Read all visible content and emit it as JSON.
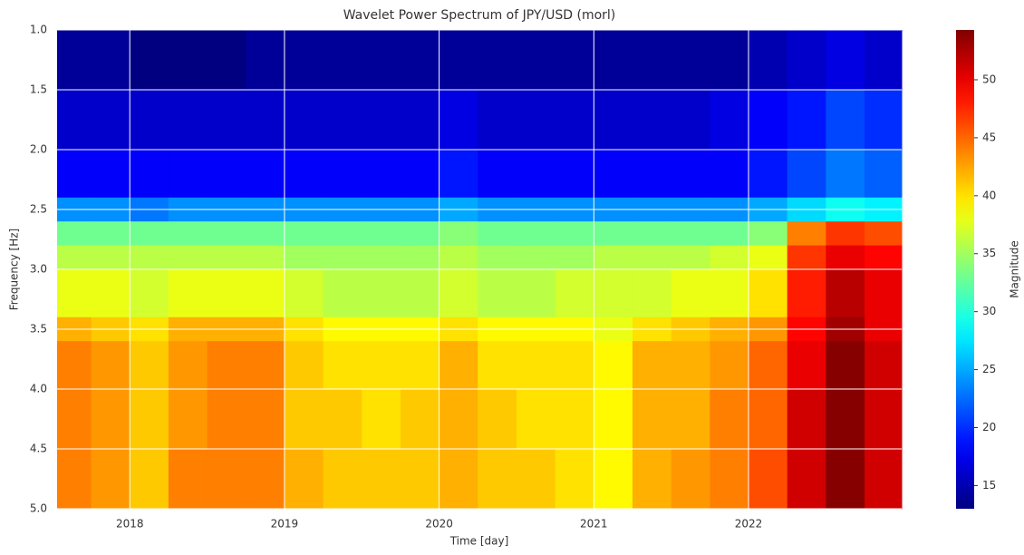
{
  "chart_data": {
    "type": "heatmap",
    "title": "Wavelet Power Spectrum of JPY/USD (morl)",
    "x_label": "Time [day]",
    "y_label": "Frequency [Hz]",
    "colorbar_label": "Magnitude",
    "colormap": "jet",
    "grid": true,
    "xlim": [
      2017.53,
      2022.99
    ],
    "xticks": [
      2018,
      2019,
      2020,
      2021,
      2022
    ],
    "ylim": [
      5.0,
      1.0
    ],
    "yticks": [
      {
        "value": 1.0,
        "label": "1.0"
      },
      {
        "value": 1.5,
        "label": "1.5"
      },
      {
        "value": 2.0,
        "label": "2.0"
      },
      {
        "value": 2.5,
        "label": "2.5"
      },
      {
        "value": 3.0,
        "label": "3.0"
      },
      {
        "value": 3.5,
        "label": "3.5"
      },
      {
        "value": 4.0,
        "label": "4.0"
      },
      {
        "value": 4.5,
        "label": "4.5"
      },
      {
        "value": 5.0,
        "label": "5.0"
      }
    ],
    "clim": [
      13,
      54.3
    ],
    "cticks": [
      15,
      20,
      25,
      30,
      35,
      40,
      45,
      50
    ],
    "xbins": [
      2017.53,
      2017.75,
      2018.0,
      2018.25,
      2018.5,
      2018.75,
      2019.0,
      2019.25,
      2019.5,
      2019.75,
      2020.0,
      2020.25,
      2020.5,
      2020.75,
      2021.0,
      2021.25,
      2021.5,
      2021.75,
      2022.0,
      2022.25,
      2022.5,
      2022.75,
      2022.99
    ],
    "ybins": [
      1.0,
      1.5,
      2.0,
      2.4,
      2.6,
      2.8,
      3.0,
      3.4,
      3.6,
      4.0,
      4.5,
      5.0
    ],
    "values": [
      [
        14,
        14,
        13,
        13,
        13,
        14,
        14,
        14,
        14,
        14,
        14,
        14,
        14,
        14,
        14,
        14,
        14,
        14,
        15,
        16,
        17,
        16
      ],
      [
        16,
        16,
        16,
        16,
        16,
        16,
        16,
        16,
        16,
        16,
        17,
        16,
        16,
        16,
        16,
        16,
        16,
        17,
        18,
        19,
        21,
        20
      ],
      [
        18,
        18,
        18,
        18,
        18,
        18,
        18,
        18,
        18,
        18,
        19,
        18,
        18,
        18,
        18,
        18,
        18,
        18,
        19,
        21,
        23,
        22
      ],
      [
        24,
        24,
        23,
        24,
        24,
        24,
        24,
        24,
        24,
        24,
        25,
        24,
        24,
        24,
        24,
        24,
        24,
        24,
        25,
        27,
        29,
        28
      ],
      [
        33,
        33,
        33,
        33,
        33,
        33,
        33,
        33,
        33,
        33,
        34,
        33,
        33,
        33,
        33,
        33,
        33,
        33,
        34,
        44,
        47,
        46
      ],
      [
        36,
        36,
        36,
        36,
        36,
        36,
        35,
        35,
        35,
        35,
        36,
        35,
        35,
        35,
        36,
        36,
        36,
        37,
        38,
        47,
        50,
        49
      ],
      [
        38,
        38,
        37,
        38,
        38,
        38,
        37,
        36,
        36,
        36,
        37,
        36,
        36,
        37,
        37,
        37,
        38,
        38,
        40,
        48,
        52,
        50
      ],
      [
        42,
        41,
        40,
        42,
        42,
        42,
        40,
        39,
        39,
        39,
        40,
        39,
        39,
        39,
        38,
        40,
        41,
        42,
        43,
        49,
        53,
        50
      ],
      [
        44,
        43,
        41,
        43,
        44,
        44,
        41,
        40,
        40,
        40,
        42,
        40,
        40,
        40,
        39,
        42,
        42,
        43,
        45,
        50,
        54,
        51
      ],
      [
        44,
        43,
        41,
        43,
        44,
        44,
        41,
        41,
        40,
        41,
        42,
        41,
        40,
        40,
        39,
        42,
        42,
        44,
        45,
        51,
        54,
        51
      ],
      [
        44,
        43,
        41,
        44,
        44,
        44,
        42,
        41,
        41,
        41,
        42,
        41,
        41,
        40,
        39,
        42,
        43,
        44,
        46,
        51,
        54,
        51
      ]
    ]
  }
}
